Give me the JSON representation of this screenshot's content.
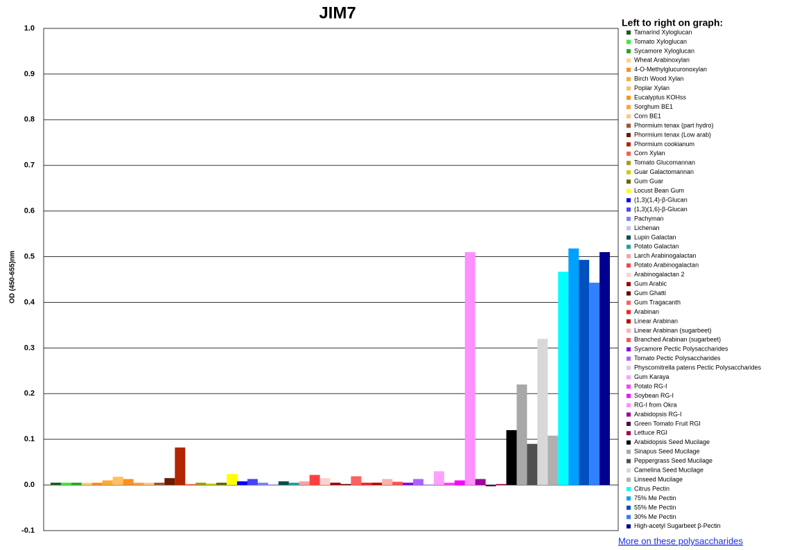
{
  "chart_data": {
    "type": "bar",
    "title": "JIM7",
    "y_label": "OD (450-655)nm",
    "legend_title": "Left to right on graph:",
    "link": "More on these polysaccharides",
    "categories": [
      "Tamarind Xyloglucan",
      "Tomato Xyloglucan",
      "Sycamore Xyloglucan",
      "Wheat Arabinoxylan",
      "4-O-Methylglucuronoxylan",
      "Birch Wood Xylan",
      "Poplar Xylan",
      "Eucalyptus KOHss",
      "Sorghum BE1",
      "Corn BE1",
      "Phormium tenax (part hydro)",
      "Phormium tenax (Low arab)",
      "Phormium cookianum",
      "Corn Xylan",
      "Tomato Glucomannan",
      "Guar Galactomannan",
      "Gum Guar",
      "Locust Bean Gum",
      "(1,3)(1,4)-β-Glucan",
      "(1,3)(1,6)-β-Glucan",
      "Pachyman",
      "Lichenan",
      "Lupin Galactan",
      "Potato Galactan",
      "Larch Arabinogalactan",
      "Potato Arabinogalactan",
      "Arabinogalactan 2",
      "Gum Arabic",
      "Gum Ghatti",
      "Gum Tragacanth",
      "Arabinan",
      "Linear Arabinan",
      "Linear Arabinan (sugarbeet)",
      "Branched Arabinan (sugarbeet)",
      "Sycamore Pectic Polysaccharides",
      "Tomato Pectic Polysaccharides",
      "Physcomitrella patens Pectic Polysaccharides",
      "Gum Karaya",
      "Potato RG-I",
      "Soybean RG-I",
      "RG-I from Okra",
      "Arabidopsis RG-I",
      "Green Tomato Fruit RGI",
      "Lettuce RGI",
      "Arabidopsis Seed Mucilage",
      "Sinapus Seed Mucilage",
      "Peppergrass Seed Mucilage",
      "Camelina Seed Mucilage",
      "Linseed Mucilage",
      "Citrus Pectin",
      "75% Me Pectin",
      "55% Me Pectin",
      "30% Me Pectin",
      "High-acetyl Sugarbeet β-Pectin"
    ],
    "values": [
      0.005,
      0.005,
      0.005,
      0.005,
      0.005,
      0.01,
      0.018,
      0.013,
      0.005,
      0.005,
      0.005,
      0.015,
      0.082,
      0.002,
      0.005,
      0.003,
      0.005,
      0.024,
      0.008,
      0.013,
      0.005,
      0.002,
      0.008,
      0.005,
      0.008,
      0.022,
      0.015,
      0.005,
      0.002,
      0.019,
      0.005,
      0.005,
      0.013,
      0.007,
      0.005,
      0.013,
      0.002,
      0.03,
      0.005,
      0.01,
      0.51,
      0.013,
      -0.003,
      0.002,
      0.12,
      0.22,
      0.09,
      0.32,
      0.108,
      0.467,
      0.518,
      0.493,
      0.443,
      0.51
    ],
    "colors": [
      "#1a5c1a",
      "#33ee33",
      "#22aa22",
      "#ffd080",
      "#ff8c1a",
      "#ffaa33",
      "#ffc060",
      "#ff9020",
      "#ffa040",
      "#ffc880",
      "#a0522d",
      "#6b1a00",
      "#b32400",
      "#ff6040",
      "#a0a000",
      "#cccc00",
      "#666600",
      "#ffff00",
      "#0000ff",
      "#4444ff",
      "#8080ff",
      "#c0c0ff",
      "#005050",
      "#20a0a0",
      "#ffa0a0",
      "#ff4040",
      "#ffd0d0",
      "#a00000",
      "#600000",
      "#ff6060",
      "#ff2020",
      "#c00000",
      "#ffb0b0",
      "#ff5050",
      "#8000ff",
      "#b060ff",
      "#e0c0ff",
      "#ffa0ff",
      "#ff40ff",
      "#ff00ff",
      "#ff90ff",
      "#a000a0",
      "#500050",
      "#a00050",
      "#000000",
      "#a8a8a8",
      "#505050",
      "#d8d8d8",
      "#b0b0b0",
      "#00ffff",
      "#00a0ff",
      "#0050c0",
      "#3080ff",
      "#000090"
    ],
    "ylim": [
      -0.1,
      1.0
    ],
    "yticks": [
      {
        "value": -0.1,
        "label": "-0.1"
      },
      {
        "value": 0,
        "label": "0.0"
      },
      {
        "value": 0.1,
        "label": "0.1"
      },
      {
        "value": 0.2,
        "label": "0.2"
      },
      {
        "value": 0.3,
        "label": "0.3"
      },
      {
        "value": 0.4,
        "label": "0.4"
      },
      {
        "value": 0.5,
        "label": "0.5"
      },
      {
        "value": 0.6,
        "label": "0.6"
      },
      {
        "value": 0.7,
        "label": "0.7"
      },
      {
        "value": 0.8,
        "label": "0.8"
      },
      {
        "value": 0.9,
        "label": "0.9"
      },
      {
        "value": 1.0,
        "label": "1.0"
      }
    ],
    "grid": true
  }
}
